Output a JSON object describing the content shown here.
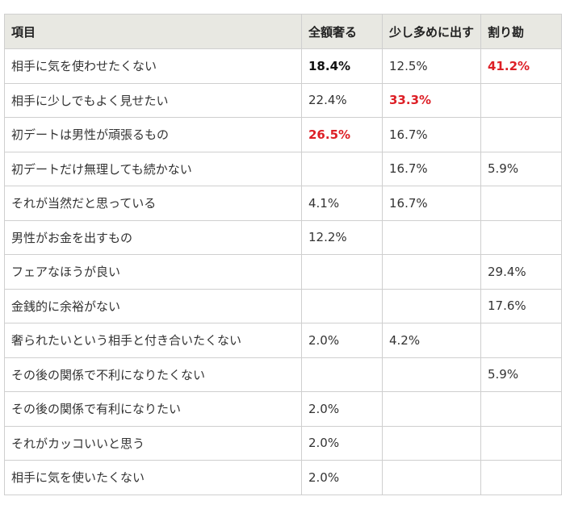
{
  "table": {
    "headers": [
      "項目",
      "全額奢る",
      "少し多めに出す",
      "割り勘"
    ],
    "rows": [
      {
        "cells": [
          "相手に気を使わせたくない",
          "18.4%",
          "12.5%",
          "41.2%"
        ],
        "styles": [
          "",
          "bold",
          "",
          "red"
        ]
      },
      {
        "cells": [
          "相手に少しでもよく見せたい",
          "22.4%",
          "33.3%",
          ""
        ],
        "styles": [
          "",
          "",
          "red",
          ""
        ]
      },
      {
        "cells": [
          "初デートは男性が頑張るもの",
          "26.5%",
          "16.7%",
          ""
        ],
        "styles": [
          "",
          "red",
          "",
          ""
        ]
      },
      {
        "cells": [
          "初デートだけ無理しても続かない",
          "",
          "16.7%",
          "5.9%"
        ],
        "styles": [
          "",
          "",
          "",
          ""
        ]
      },
      {
        "cells": [
          "それが当然だと思っている",
          "4.1%",
          "16.7%",
          ""
        ],
        "styles": [
          "",
          "",
          "",
          ""
        ]
      },
      {
        "cells": [
          "男性がお金を出すもの",
          "12.2%",
          "",
          ""
        ],
        "styles": [
          "",
          "",
          "",
          ""
        ]
      },
      {
        "cells": [
          "フェアなほうが良い",
          "",
          "",
          "29.4%"
        ],
        "styles": [
          "",
          "",
          "",
          ""
        ]
      },
      {
        "cells": [
          "金銭的に余裕がない",
          "",
          "",
          "17.6%"
        ],
        "styles": [
          "",
          "",
          "",
          ""
        ]
      },
      {
        "cells": [
          "奢られたいという相手と付き合いたくない",
          "2.0%",
          "4.2%",
          ""
        ],
        "styles": [
          "",
          "",
          "",
          ""
        ]
      },
      {
        "cells": [
          "その後の関係で不利になりたくない",
          "",
          "",
          "5.9%"
        ],
        "styles": [
          "",
          "",
          "",
          ""
        ]
      },
      {
        "cells": [
          "その後の関係で有利になりたい",
          "2.0%",
          "",
          ""
        ],
        "styles": [
          "",
          "",
          "",
          ""
        ]
      },
      {
        "cells": [
          "それがカッコいいと思う",
          "2.0%",
          "",
          ""
        ],
        "styles": [
          "",
          "",
          "",
          ""
        ]
      },
      {
        "cells": [
          "相手に気を使いたくない",
          "2.0%",
          "",
          ""
        ],
        "styles": [
          "",
          "",
          "",
          ""
        ]
      }
    ]
  },
  "colors": {
    "header_bg": "#e8e8e2",
    "border": "#cfcfcf",
    "highlight_red": "#dd1f26"
  }
}
